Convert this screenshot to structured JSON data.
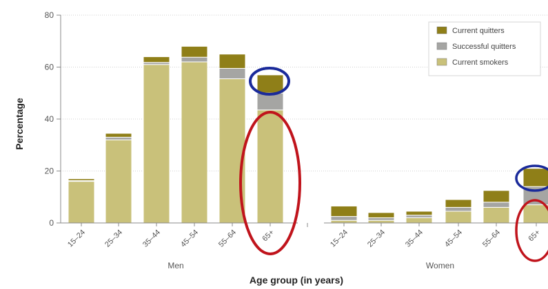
{
  "chart_data": {
    "type": "bar",
    "stacked": true,
    "title": "",
    "xlabel": "Age group (in years)",
    "ylabel": "Percentage",
    "ylim": [
      0,
      80
    ],
    "yticks": [
      0,
      20,
      40,
      60,
      80
    ],
    "grid": true,
    "legend_position": "top-right",
    "groups": [
      {
        "name": "Men",
        "categories": [
          "15–24",
          "25–34",
          "35–44",
          "45–54",
          "55–64",
          "65+"
        ],
        "series": [
          {
            "name": "Current smokers",
            "values": [
              16,
              32,
              61,
              62,
              55.5,
              43.5
            ]
          },
          {
            "name": "Successful quitters",
            "values": [
              0.3,
              1,
              0.8,
              1.8,
              4,
              6.5
            ]
          },
          {
            "name": "Current quitters",
            "values": [
              0.7,
              1.5,
              2.2,
              4.2,
              5.5,
              7
            ]
          }
        ]
      },
      {
        "name": "Women",
        "categories": [
          "15–24",
          "25–34",
          "35–44",
          "45–54",
          "55–64",
          "65+"
        ],
        "series": [
          {
            "name": "Current smokers",
            "values": [
              1,
              1,
              2,
              4.5,
              6,
              7
            ]
          },
          {
            "name": "Successful quitters",
            "values": [
              1.5,
              1,
              1,
              1.5,
              2,
              7
            ]
          },
          {
            "name": "Current quitters",
            "values": [
              4,
              2,
              1.5,
              3,
              4.5,
              7
            ]
          }
        ]
      }
    ],
    "legend": [
      "Current quitters",
      "Successful quitters",
      "Current smokers"
    ],
    "colors": {
      "Current smokers": "#c9c17a",
      "Successful quitters": "#a5a5a3",
      "Current quitters": "#8f7f18",
      "highlight_top": "#1a2a9a",
      "highlight_bottom": "#c0141c"
    }
  }
}
